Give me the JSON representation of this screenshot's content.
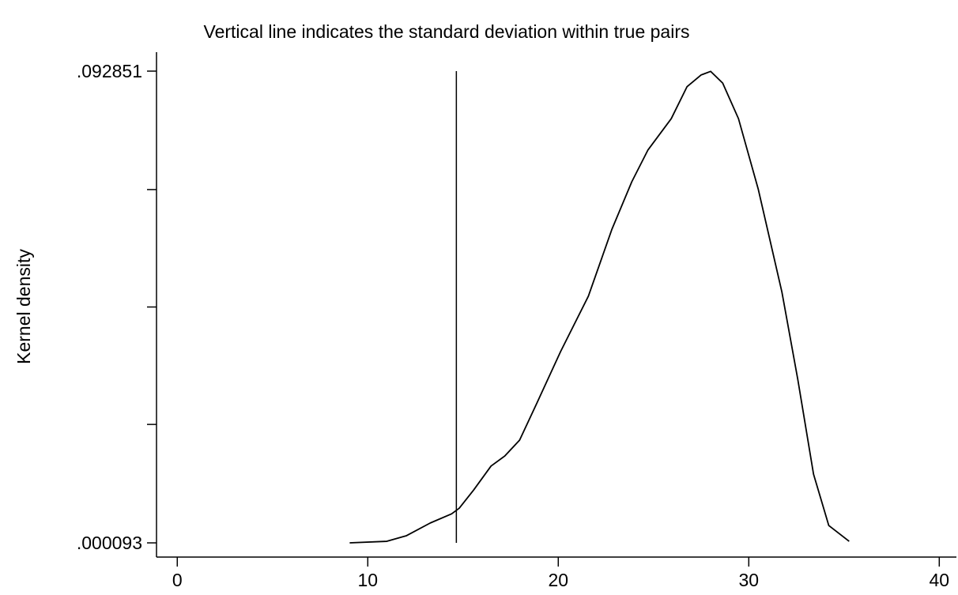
{
  "chart_data": {
    "type": "line",
    "title": "Vertical line indicates the standard deviation  within true pairs",
    "y_label": "Kernel density",
    "x": [
      9.05,
      11.0,
      12.03,
      13.28,
      14.4,
      14.8,
      15.56,
      16.47,
      17.2,
      17.97,
      18.88,
      20.12,
      21.58,
      22.82,
      23.86,
      24.7,
      25.93,
      26.76,
      27.5,
      28.0,
      28.63,
      29.46,
      30.5,
      31.74,
      32.57,
      33.4,
      34.2,
      35.27
    ],
    "series": [
      {
        "color": "#000000",
        "values": [
          9.3e-05,
          0.0004,
          0.0015,
          0.004,
          0.0058,
          0.0069,
          0.0105,
          0.0152,
          0.0172,
          0.0203,
          0.0276,
          0.0377,
          0.0486,
          0.0618,
          0.0711,
          0.0773,
          0.0835,
          0.0898,
          0.0921,
          0.0928,
          0.0905,
          0.0835,
          0.0696,
          0.0494,
          0.0323,
          0.0136,
          0.0035,
          0.0004
        ]
      }
    ],
    "reference_line": {
      "x": 14.65
    },
    "xlim": [
      -0.8,
      40.9
    ],
    "xticks": [
      0,
      10,
      20,
      30,
      40
    ],
    "ylim": [
      -0.0027,
      0.09627
    ],
    "yticks": [
      {
        "value": 9.3e-05,
        "label": ".000093"
      },
      {
        "value": 0.092851,
        "label": ".092851"
      }
    ],
    "yminorticks": [
      0.0233825,
      0.046472,
      0.0695615
    ]
  }
}
